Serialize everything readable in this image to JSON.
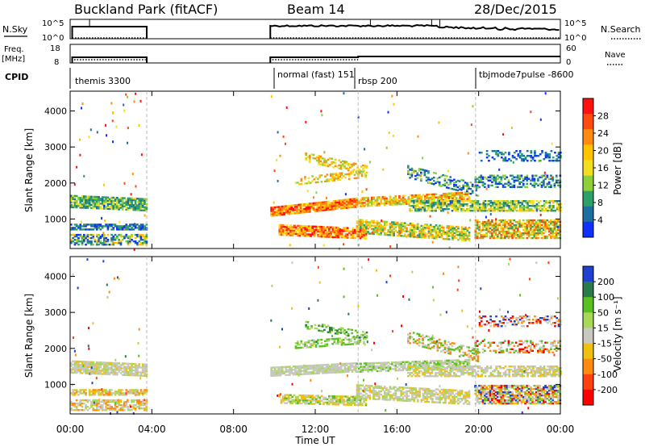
{
  "header": {
    "station": "Buckland Park (fitACF)",
    "beam": "Beam 14",
    "date": "28/Dec/2015"
  },
  "panels": {
    "nsky_label": "N.Sky",
    "nsky_ticks": [
      "10^5",
      "10^0"
    ],
    "nsearch_label": "N.Search",
    "nsearch_ticks": [
      "10^5",
      "10^0"
    ],
    "freq_label_1": "Freq.",
    "freq_label_2": "[MHz]",
    "freq_ticks": [
      "18",
      "8"
    ],
    "nave_label": "Nave",
    "nave_ticks": [
      "60",
      "0"
    ],
    "cpid_label": "CPID",
    "cpid_entries": [
      "themis 3300",
      "normal (fast) 151",
      "rbsp 200",
      "tbjmode7pulse -8600"
    ]
  },
  "chart_data": [
    {
      "type": "heatmap",
      "title": "",
      "xlabel": "Time UT",
      "ylabel": "Slant Range [km]",
      "xlim_hours": [
        0,
        24
      ],
      "ylim_km": [
        180,
        4550
      ],
      "x_ticks": [
        "00:00",
        "04:00",
        "08:00",
        "12:00",
        "16:00",
        "20:00",
        "00:00"
      ],
      "y_ticks": [
        1000,
        2000,
        3000,
        4000
      ],
      "colorbar": {
        "label": "Power [dB]",
        "ticks": [
          "28",
          "24",
          "20",
          "16",
          "12",
          "8",
          "4"
        ],
        "colors": [
          "#ff1010",
          "#ff4a10",
          "#ff8c10",
          "#ffc300",
          "#f2e020",
          "#8fcf3c",
          "#2da06a",
          "#1e6fa0",
          "#1030ff"
        ]
      },
      "data_gaps_hours": [
        [
          3.75,
          9.8
        ]
      ],
      "mode_change_lines_hours": [
        3.75,
        14.1,
        19.85
      ]
    },
    {
      "type": "heatmap",
      "title": "",
      "xlabel": "Time UT",
      "ylabel": "Slant Range [km]",
      "xlim_hours": [
        0,
        24
      ],
      "ylim_km": [
        180,
        4550
      ],
      "x_ticks": [
        "00:00",
        "04:00",
        "08:00",
        "12:00",
        "16:00",
        "20:00",
        "00:00"
      ],
      "y_ticks": [
        1000,
        2000,
        3000,
        4000
      ],
      "colorbar": {
        "label": "Velocity [m s^-1]",
        "ticks": [
          "200",
          "100",
          "50",
          "15",
          "-15",
          "-50",
          "-100",
          "-200"
        ],
        "colors": [
          "#2040d0",
          "#2a7a4a",
          "#58c020",
          "#a8d858",
          "#c8c8c0",
          "#f0c010",
          "#ff8a10",
          "#ff4010",
          "#ff0000"
        ]
      },
      "data_gaps_hours": [
        [
          3.75,
          9.8
        ]
      ],
      "mode_change_lines_hours": [
        3.75,
        14.1,
        19.85
      ]
    }
  ],
  "xlabel_text": "Time UT",
  "power_label_text": "Power [dB]",
  "velocity_label_text": "Velocity [m s⁻¹]"
}
